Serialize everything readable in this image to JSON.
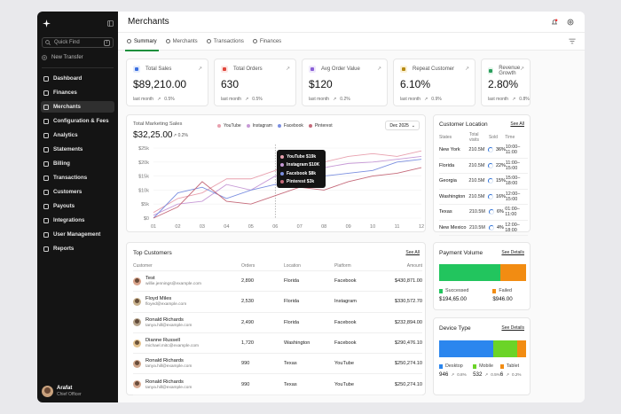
{
  "sidebar": {
    "search_placeholder": "Quick Find",
    "search_kbd": "/",
    "new_transfer": "New Transfer",
    "items": [
      {
        "label": "Dashboard",
        "icon": "grid-icon",
        "active": false
      },
      {
        "label": "Finances",
        "icon": "wallet-icon",
        "active": false
      },
      {
        "label": "Merchants",
        "icon": "store-icon",
        "active": true
      },
      {
        "label": "Configuration & Fees",
        "icon": "settings-icon",
        "active": false
      },
      {
        "label": "Analytics",
        "icon": "analytics-icon",
        "active": false
      },
      {
        "label": "Statements",
        "icon": "statement-icon",
        "active": false
      },
      {
        "label": "Billing",
        "icon": "billing-icon",
        "active": false
      },
      {
        "label": "Transactions",
        "icon": "transactions-icon",
        "active": false
      },
      {
        "label": "Customers",
        "icon": "customers-icon",
        "active": false
      },
      {
        "label": "Payouts",
        "icon": "payouts-icon",
        "active": false
      },
      {
        "label": "Integrations",
        "icon": "integrations-icon",
        "active": false
      },
      {
        "label": "User Management",
        "icon": "user-management-icon",
        "active": false
      },
      {
        "label": "Reports",
        "icon": "reports-icon",
        "active": false
      }
    ],
    "user": {
      "name": "Arafat",
      "role": "Chief Officer"
    }
  },
  "header": {
    "title": "Merchants"
  },
  "tabs": [
    {
      "label": "Summary",
      "active": true
    },
    {
      "label": "Merchants",
      "active": false
    },
    {
      "label": "Transactions",
      "active": false
    },
    {
      "label": "Finances",
      "active": false
    }
  ],
  "kpis": [
    {
      "title": "Total Sales",
      "value": "$89,210.00",
      "foot_label": "last month",
      "change": "0.5%",
      "color": "#3b6fe0",
      "bg": "#e4ecfc"
    },
    {
      "title": "Total Orders",
      "value": "630",
      "foot_label": "last month",
      "change": "0.5%",
      "color": "#e0463b",
      "bg": "#fde7e5"
    },
    {
      "title": "Avg Order Value",
      "value": "$120",
      "foot_label": "last month",
      "change": "0.2%",
      "color": "#8a5fd6",
      "bg": "#efe8fb"
    },
    {
      "title": "Repeat Customer",
      "value": "6.10%",
      "foot_label": "last month",
      "change": "0.9%",
      "color": "#b58a12",
      "bg": "#fbf1d7"
    },
    {
      "title": "Revenue Growth",
      "value": "2.80%",
      "foot_label": "last month",
      "change": "0.8%",
      "color": "#2a9d5c",
      "bg": "#e1f4e8"
    }
  ],
  "marketing": {
    "title": "Total Marketing Sales",
    "value": "$32,25.00",
    "change": "0.2%",
    "filter": "Dec 2025",
    "tooltip": [
      "YouTube $19k",
      "Instagram $10K",
      "Facebook $8k",
      "Pinterest $3k"
    ]
  },
  "chart_data": {
    "type": "line",
    "title": "Total Marketing Sales",
    "x": [
      "01",
      "02",
      "03",
      "04",
      "05",
      "06",
      "07",
      "08",
      "09",
      "10",
      "11",
      "12"
    ],
    "yticks": [
      "$0",
      "$5k",
      "$10k",
      "$15k",
      "$20k",
      "$25k"
    ],
    "ylim": [
      0,
      25000
    ],
    "series": [
      {
        "name": "YouTube",
        "color": "#e8a0ae",
        "values": [
          2000,
          7000,
          9000,
          14000,
          14000,
          17000,
          21000,
          20000,
          22000,
          23000,
          22000,
          24000
        ]
      },
      {
        "name": "Instagram",
        "color": "#c79ad6",
        "values": [
          1000,
          5000,
          6000,
          12000,
          10000,
          15000,
          17000,
          18000,
          19500,
          20000,
          21000,
          22000
        ]
      },
      {
        "name": "Facebook",
        "color": "#7b8fe0",
        "values": [
          0,
          9000,
          11000,
          7000,
          10000,
          12000,
          12000,
          15000,
          16000,
          17000,
          20000,
          21000
        ]
      },
      {
        "name": "Pinterest",
        "color": "#c56a7a",
        "values": [
          0,
          4000,
          13000,
          6000,
          5000,
          8000,
          11000,
          10000,
          13000,
          15000,
          16000,
          18000
        ]
      }
    ]
  },
  "location": {
    "title": "Customer Location",
    "see_all": "See All",
    "headers": [
      "States",
      "Total visits",
      "Sold",
      "Time"
    ],
    "rows": [
      {
        "state": "New York",
        "visits": "210.5M",
        "sold": "36%",
        "time": "10:00–11:00"
      },
      {
        "state": "Florida",
        "visits": "210.5M",
        "sold": "22%",
        "time": "11:00–15:00"
      },
      {
        "state": "Georgia",
        "visits": "210.5M",
        "sold": "15%",
        "time": "15:00–18:00"
      },
      {
        "state": "Washington",
        "visits": "210.5M",
        "sold": "16%",
        "time": "12:00–15:00"
      },
      {
        "state": "Texas",
        "visits": "210.5M",
        "sold": "6%",
        "time": "01:00–11:00"
      },
      {
        "state": "New Mexico",
        "visits": "210.5M",
        "sold": "4%",
        "time": "12:00–18:00"
      }
    ]
  },
  "top_customers": {
    "title": "Top Customers",
    "see_all": "See All",
    "headers": [
      "Customer",
      "Orders",
      "Location",
      "Platform",
      "Amount"
    ],
    "rows": [
      {
        "name": "Test",
        "email": "willie.jennings@example.com",
        "orders": "2,890",
        "location": "Florida",
        "platform": "Facebook",
        "amount": "$430,871.00",
        "avatar": "#d9a48c"
      },
      {
        "name": "Floyd Miles",
        "email": "floyed@example.com",
        "orders": "2,530",
        "location": "Florida",
        "platform": "Instagram",
        "amount": "$330,572.70",
        "avatar": "#c9b38f"
      },
      {
        "name": "Ronald Richards",
        "email": "tanya.hill@example.com",
        "orders": "2,490",
        "location": "Florida",
        "platform": "Facebook",
        "amount": "$232,894.00",
        "avatar": "#b7a48c"
      },
      {
        "name": "Dianne Russell",
        "email": "michael.mitc@example.com",
        "orders": "1,720",
        "location": "Washington",
        "platform": "Facebook",
        "amount": "$290,476.10",
        "avatar": "#e3c391"
      },
      {
        "name": "Ronald Richards",
        "email": "tanya.hill@example.com",
        "orders": "990",
        "location": "Texas",
        "platform": "YouTube",
        "amount": "$250,274.10",
        "avatar": "#cfa78c"
      },
      {
        "name": "Ronald Richards",
        "email": "tanya.hill@example.com",
        "orders": "990",
        "location": "Texas",
        "platform": "YouTube",
        "amount": "$250,274.10",
        "avatar": "#d7ab93"
      }
    ]
  },
  "payment": {
    "title": "Payment Volume",
    "see_details": "See Details",
    "items": [
      {
        "label": "Successed",
        "value": "$194,65.00",
        "color": "#22c55e",
        "share": 0.7
      },
      {
        "label": "Failed",
        "value": "$946.00",
        "color": "#f28c12",
        "share": 0.3
      }
    ]
  },
  "device": {
    "title": "Device Type",
    "see_details": "See Details",
    "items": [
      {
        "label": "Desktop",
        "value": "946",
        "change": "0.8%",
        "color": "#2b86ee",
        "share": 0.62
      },
      {
        "label": "Mobile",
        "value": "532",
        "change": "0.5%",
        "color": "#6bd427",
        "share": 0.28
      },
      {
        "label": "Tablet",
        "value": "6",
        "change": "0.2%",
        "color": "#f28c12",
        "share": 0.1
      }
    ]
  }
}
